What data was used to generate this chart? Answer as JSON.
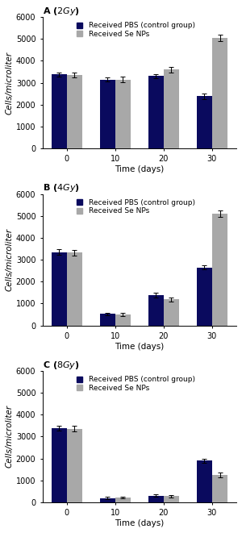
{
  "panels": [
    {
      "title_prefix": "A (",
      "title_italic": "2Gy",
      "title_suffix": ")",
      "x_labels": [
        "0",
        "10",
        "20",
        "30"
      ],
      "pbs_values": [
        3380,
        3150,
        3300,
        2380
      ],
      "pbs_errors": [
        100,
        100,
        80,
        120
      ],
      "senp_values": [
        3350,
        3150,
        3600,
        5050
      ],
      "senp_errors": [
        100,
        130,
        120,
        150
      ]
    },
    {
      "title_prefix": "B (",
      "title_italic": "4Gy",
      "title_suffix": ")",
      "x_labels": [
        "0",
        "10",
        "20",
        "30"
      ],
      "pbs_values": [
        3350,
        520,
        1380,
        2650
      ],
      "pbs_errors": [
        120,
        60,
        100,
        100
      ],
      "senp_values": [
        3320,
        500,
        1180,
        5100
      ],
      "senp_errors": [
        120,
        60,
        80,
        150
      ]
    },
    {
      "title_prefix": "C (",
      "title_italic": "8Gy",
      "title_suffix": ")",
      "x_labels": [
        "0",
        "10",
        "20",
        "30"
      ],
      "pbs_values": [
        3380,
        200,
        310,
        1900
      ],
      "pbs_errors": [
        100,
        50,
        60,
        100
      ],
      "senp_values": [
        3360,
        220,
        280,
        1250
      ],
      "senp_errors": [
        120,
        50,
        60,
        100
      ]
    }
  ],
  "ylim": [
    0,
    6000
  ],
  "yticks": [
    0,
    1000,
    2000,
    3000,
    4000,
    5000,
    6000
  ],
  "ylabel": "Cells/microliter",
  "xlabel": "Time (days)",
  "pbs_color": "#0a0a5e",
  "senp_color": "#a8a8a8",
  "legend_pbs": "Received PBS (control group)",
  "legend_senp": "Received Se NPs",
  "bar_width": 0.32,
  "capsize": 2,
  "title_fontsize": 8,
  "axis_fontsize": 7.5,
  "tick_fontsize": 7,
  "legend_fontsize": 6.5
}
